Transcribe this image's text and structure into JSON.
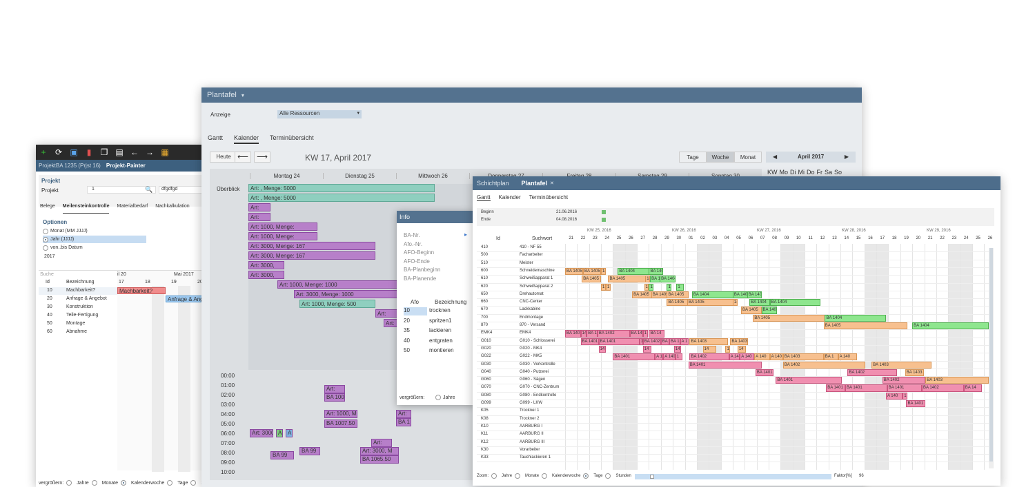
{
  "winA": {
    "toolbar_icons": [
      "plus-icon",
      "refresh-icon",
      "save-icon",
      "delete-icon",
      "copy-icon",
      "document-icon",
      "arrow-left-icon",
      "arrow-right-icon",
      "print-icon"
    ],
    "tab_inactive": "ProjektBA 1235 (Prjst 16)",
    "tab_active": "Projekt-Painter",
    "section_title": "Projekt",
    "projekt_label": "Projekt",
    "projekt_value": "1",
    "projekt_name": "dfgdfgd",
    "subtabs": [
      "Belege",
      "Meilensteinkontrolle",
      "Materialbedarf",
      "Nachkalkulation"
    ],
    "options_title": "Optionen",
    "options": [
      "Monat (MM JJJJ)",
      "Jahr (JJJJ)",
      "von..bis Datum"
    ],
    "year_value": "2017",
    "search_placeholder": "Suche",
    "col_id": "Id",
    "col_bez": "Bezeichnung",
    "month_a": "il 20",
    "month_b": "Mai 2017",
    "days": [
      "17",
      "18",
      "19",
      "20"
    ],
    "rows": [
      {
        "id": "10",
        "bez": "Machbarkeit?"
      },
      {
        "id": "20",
        "bez": "Anfrage & Angebot"
      },
      {
        "id": "30",
        "bez": "Konstruktion"
      },
      {
        "id": "40",
        "bez": "Teile-Fertigung"
      },
      {
        "id": "50",
        "bez": "Montage"
      },
      {
        "id": "60",
        "bez": "Abnahme"
      }
    ],
    "bar1": "Machbarkeit?",
    "bar2": "Anfrage & Ang",
    "zoom_label": "vergrößern:",
    "zoom_opts": [
      "Jahre",
      "Monate",
      "Kalenderwoche",
      "Tage",
      "S"
    ]
  },
  "winB": {
    "title": "Plantafel",
    "anzeige_label": "Anzeige",
    "anzeige_value": "Alle Ressourcen",
    "tabs": [
      "Gantt",
      "Kalender",
      "Terminübersicht"
    ],
    "heute": "Heute",
    "week_title": "KW 17, April 2017",
    "view_btns": [
      "Tage",
      "Woche",
      "Monat"
    ],
    "month_nav": "April 2017",
    "weekdays_short": [
      "KW",
      "Mo",
      "Di",
      "Mi",
      "Do",
      "Fr",
      "Sa",
      "So"
    ],
    "days": [
      "Montag 24",
      "Dienstag 25",
      "Mittwoch 26",
      "Donnerstag 27",
      "Freitag 28",
      "Samstag 29",
      "Sonntag 30"
    ],
    "overview_label": "Überblick",
    "bars": [
      "Art: , Menge: 5000",
      "Art: , Menge: 5000",
      "Art:",
      "Art:",
      "Art: 1000, Menge:",
      "Art: 1000, Menge:",
      "Art: 3000, Menge: 167",
      "Art: 3000, Menge: 167",
      "Art: 3000,",
      "Art: 3000,",
      "Art: 1000, Menge: 1000",
      "Art: 3000, Menge: 1000",
      "Art: 1000, Menge: 500",
      "Art:",
      "Art:"
    ],
    "hours": [
      "00:00",
      "01:00",
      "02:00",
      "03:00",
      "04:00",
      "05:00",
      "06:00",
      "07:00",
      "08:00",
      "09:00",
      "10:00"
    ],
    "cal_blocks": [
      "Art:",
      "BA 1001",
      "Art: 1000, Me",
      "BA 1007.50",
      "Art: 3000, M",
      "BA 1065.50",
      "Art:",
      "Art: 3000",
      "BA 99",
      "BA 99",
      "Art:",
      "BA 1",
      "A",
      "A"
    ]
  },
  "info": {
    "title": "Info",
    "fields": [
      "BA-Nr.",
      "Afo.-Nr.",
      "AFO-Beginn",
      "AFO-Ende",
      "BA-Planbeginn",
      "BA-Planende"
    ],
    "col_afo": "Afo",
    "col_bez": "Bezeichnung",
    "rows": [
      {
        "afo": "10",
        "bez": "trocknen"
      },
      {
        "afo": "20",
        "bez": "spritzen1"
      },
      {
        "afo": "35",
        "bez": "lackieren"
      },
      {
        "afo": "40",
        "bez": "entgraten"
      },
      {
        "afo": "50",
        "bez": "montieren"
      }
    ],
    "zoom_label": "vergrößern:",
    "zoom_opt": "Jahre"
  },
  "winC": {
    "tab1": "Schichtplan",
    "tab2": "Plantafel",
    "subtabs": [
      "Gantt",
      "Kalender",
      "Terminübersicht"
    ],
    "beginn_label": "Beginn",
    "beginn_value": "21.06.2016",
    "ende_label": "Ende",
    "ende_value": "04.08.2016",
    "col_id": "Id",
    "col_such": "Suchwort",
    "weeks": [
      "KW 25, 2016",
      "KW 26, 2016",
      "KW 27, 2016",
      "KW 28, 2016",
      "KW 29, 2016"
    ],
    "days": [
      "21",
      "22",
      "23",
      "24",
      "25",
      "26",
      "27",
      "28",
      "29",
      "30",
      "01",
      "02",
      "03",
      "04",
      "05",
      "06",
      "07",
      "08",
      "09",
      "10",
      "11",
      "12",
      "13",
      "14",
      "15",
      "16",
      "17",
      "18",
      "19",
      "20",
      "21",
      "22",
      "23",
      "24",
      "25",
      "26"
    ],
    "rows": [
      {
        "id": "410",
        "s": "410 - NF 55"
      },
      {
        "id": "500",
        "s": "Facharbeiter"
      },
      {
        "id": "510",
        "s": "Meister"
      },
      {
        "id": "600",
        "s": "Schneidemaschine"
      },
      {
        "id": "610",
        "s": "Schweißapparat 1"
      },
      {
        "id": "620",
        "s": "Schweißapparat 2"
      },
      {
        "id": "650",
        "s": "Drehautomat"
      },
      {
        "id": "660",
        "s": "CNC-Center"
      },
      {
        "id": "670",
        "s": "Lackkabine"
      },
      {
        "id": "700",
        "s": "Endmontage"
      },
      {
        "id": "870",
        "s": "870 - Versand"
      },
      {
        "id": "EMK4",
        "s": "EMK4"
      },
      {
        "id": "G010",
        "s": "G010 - Schlosserei"
      },
      {
        "id": "G020",
        "s": "G020 - MK4"
      },
      {
        "id": "G022",
        "s": "G022 - MK5"
      },
      {
        "id": "G030",
        "s": "G030 - Vorkontrolle"
      },
      {
        "id": "G040",
        "s": "G040 - Putzerei"
      },
      {
        "id": "G060",
        "s": "G060 - Sägen"
      },
      {
        "id": "G070",
        "s": "G070 - CNC-Zentrum"
      },
      {
        "id": "G080",
        "s": "G080 - Endkontrolle"
      },
      {
        "id": "G099",
        "s": "G099 - LKW"
      },
      {
        "id": "K05",
        "s": "Trockner 1"
      },
      {
        "id": "K08",
        "s": "Trockner 2"
      },
      {
        "id": "K10",
        "s": "AARBURG I"
      },
      {
        "id": "K11",
        "s": "AARBURG II"
      },
      {
        "id": "K12",
        "s": "AARBURG III"
      },
      {
        "id": "K30",
        "s": "Vorarbeiter"
      },
      {
        "id": "K33",
        "s": "Tauchlackieren 1"
      }
    ],
    "zoom_label": "Zoom:",
    "zoom_opts": [
      "Jahre",
      "Monate",
      "Kalenderwoche",
      "Tage",
      "Stunden"
    ],
    "faktor_label": "Faktor[%]",
    "faktor_value": "96",
    "bars": [
      {
        "r": 3,
        "d": 0,
        "w": 1.5,
        "c": "o",
        "t": "BA 1405"
      },
      {
        "r": 3,
        "d": 1.5,
        "w": 1.5,
        "c": "o",
        "t": "BA 1405"
      },
      {
        "r": 3,
        "d": 3,
        "w": 0.4,
        "c": "o",
        "t": "14"
      },
      {
        "r": 3,
        "d": 4.4,
        "w": 3.4,
        "c": "g",
        "t": "BA 1404"
      },
      {
        "r": 3,
        "d": 7,
        "w": 1.2,
        "c": "g",
        "t": "BA 1404"
      },
      {
        "r": 4,
        "d": 1.4,
        "w": 1.6,
        "c": "o",
        "t": "BA 1405"
      },
      {
        "r": 4,
        "d": 3.6,
        "w": 3.6,
        "c": "o",
        "t": "BA 1405"
      },
      {
        "r": 4,
        "d": 6.7,
        "w": 0.4,
        "c": "o",
        "t": "14"
      },
      {
        "r": 4,
        "d": 7.1,
        "w": 1.4,
        "c": "g",
        "t": "BA 1404"
      },
      {
        "r": 4,
        "d": 7.9,
        "w": 1.3,
        "c": "g",
        "t": "BA 1404"
      },
      {
        "r": 5,
        "d": 3,
        "w": 0.4,
        "c": "o",
        "t": "1"
      },
      {
        "r": 5,
        "d": 3.4,
        "w": 0.4,
        "c": "o",
        "t": "1"
      },
      {
        "r": 5,
        "d": 6.6,
        "w": 0.4,
        "c": "o",
        "t": "1"
      },
      {
        "r": 5,
        "d": 7,
        "w": 0.4,
        "c": "g",
        "t": "1"
      },
      {
        "r": 5,
        "d": 8.5,
        "w": 0.4,
        "c": "g",
        "t": "1"
      },
      {
        "r": 5,
        "d": 9.3,
        "w": 0.6,
        "c": "g",
        "t": "1"
      },
      {
        "r": 6,
        "d": 5.6,
        "w": 1.7,
        "c": "o",
        "t": "BA 1405"
      },
      {
        "r": 6,
        "d": 7.2,
        "w": 1.6,
        "c": "o",
        "t": "BA 1405"
      },
      {
        "r": 6,
        "d": 8.5,
        "w": 1.8,
        "c": "o",
        "t": "BA 1405"
      },
      {
        "r": 6,
        "d": 10.6,
        "w": 3.5,
        "c": "g",
        "t": "BA 1404"
      },
      {
        "r": 6,
        "d": 14,
        "w": 1.6,
        "c": "g",
        "t": "BA 1404"
      },
      {
        "r": 6,
        "d": 15.2,
        "w": 1.2,
        "c": "g",
        "t": "BA 140"
      },
      {
        "r": 7,
        "d": 8.5,
        "w": 2.6,
        "c": "o",
        "t": "BA 1405"
      },
      {
        "r": 7,
        "d": 10.2,
        "w": 3.9,
        "c": "o",
        "t": "BA 1405"
      },
      {
        "r": 7,
        "d": 14,
        "w": 0.4,
        "c": "o",
        "t": "14"
      },
      {
        "r": 7,
        "d": 15.4,
        "w": 1.7,
        "c": "g",
        "t": "BA 1404"
      },
      {
        "r": 7,
        "d": 17.1,
        "w": 4.2,
        "c": "g",
        "t": "BA 1404"
      },
      {
        "r": 8,
        "d": 14.7,
        "w": 1.7,
        "c": "o",
        "t": "BA 1405"
      },
      {
        "r": 8,
        "d": 16.4,
        "w": 1.3,
        "c": "g",
        "t": "BA 1404"
      },
      {
        "r": 9,
        "d": 15.7,
        "w": 6.1,
        "c": "o",
        "t": "BA 1405"
      },
      {
        "r": 9,
        "d": 21.7,
        "w": 5.1,
        "c": "g",
        "t": "BA 1404"
      },
      {
        "r": 10,
        "d": 21.6,
        "w": 7,
        "c": "o",
        "t": "BA 1405"
      },
      {
        "r": 10,
        "d": 29,
        "w": 7,
        "c": "g",
        "t": "BA 1404"
      },
      {
        "r": 11,
        "d": 0,
        "w": 1.3,
        "c": "r",
        "t": "BA 140"
      },
      {
        "r": 11,
        "d": 1.3,
        "w": 0.5,
        "c": "r",
        "t": "14"
      },
      {
        "r": 11,
        "d": 1.8,
        "w": 0.9,
        "c": "r",
        "t": "BA 140"
      },
      {
        "r": 11,
        "d": 2.7,
        "w": 2.7,
        "c": "r",
        "t": "BA 1402"
      },
      {
        "r": 11,
        "d": 5.4,
        "w": 1.1,
        "c": "r",
        "t": "BA 140"
      },
      {
        "r": 11,
        "d": 6.5,
        "w": 0.4,
        "c": "r",
        "t": "1"
      },
      {
        "r": 11,
        "d": 7,
        "w": 1.3,
        "c": "r",
        "t": "BA 14"
      },
      {
        "r": 12,
        "d": 1.3,
        "w": 1.5,
        "c": "r",
        "t": "BA 1401"
      },
      {
        "r": 12,
        "d": 2.8,
        "w": 3.4,
        "c": "r",
        "t": "BA 1401"
      },
      {
        "r": 12,
        "d": 6.2,
        "w": 0.3,
        "c": "r",
        "t": "1"
      },
      {
        "r": 12,
        "d": 6.5,
        "w": 1.5,
        "c": "r",
        "t": "BA 1402"
      },
      {
        "r": 12,
        "d": 8,
        "w": 0.7,
        "c": "r",
        "t": "BA 1"
      },
      {
        "r": 12,
        "d": 8.7,
        "w": 0.9,
        "c": "r",
        "t": "BA 1"
      },
      {
        "r": 12,
        "d": 9.6,
        "w": 0.7,
        "c": "r",
        "t": "A 1"
      },
      {
        "r": 12,
        "d": 10.4,
        "w": 3.2,
        "c": "o",
        "t": "BA 1403"
      },
      {
        "r": 12,
        "d": 13.8,
        "w": 1.5,
        "c": "o",
        "t": "BA 1403"
      },
      {
        "r": 13,
        "d": 2.8,
        "w": 0.6,
        "c": "r",
        "t": "14"
      },
      {
        "r": 13,
        "d": 6.5,
        "w": 0.7,
        "c": "r",
        "t": "14"
      },
      {
        "r": 13,
        "d": 9.1,
        "w": 0.6,
        "c": "r",
        "t": "14"
      },
      {
        "r": 13,
        "d": 11.5,
        "w": 1.1,
        "c": "o",
        "t": "14"
      },
      {
        "r": 13,
        "d": 13.4,
        "w": 0.4,
        "c": "o",
        "t": "1"
      },
      {
        "r": 13,
        "d": 14.4,
        "w": 0.7,
        "c": "o",
        "t": "14"
      },
      {
        "r": 14,
        "d": 4,
        "w": 3.5,
        "c": "r",
        "t": "BA 1401"
      },
      {
        "r": 14,
        "d": 7.5,
        "w": 0.7,
        "c": "r",
        "t": "A 140"
      },
      {
        "r": 14,
        "d": 8.2,
        "w": 1,
        "c": "r",
        "t": "A 140"
      },
      {
        "r": 14,
        "d": 9.2,
        "w": 0.6,
        "c": "r",
        "t": "1"
      },
      {
        "r": 14,
        "d": 10.4,
        "w": 3.3,
        "c": "r",
        "t": "BA 1402"
      },
      {
        "r": 14,
        "d": 13.7,
        "w": 0.9,
        "c": "r",
        "t": "A 140"
      },
      {
        "r": 14,
        "d": 14.6,
        "w": 1.2,
        "c": "r",
        "t": "A 140"
      },
      {
        "r": 14,
        "d": 15.8,
        "w": 1.3,
        "c": "o",
        "t": "A 140"
      },
      {
        "r": 14,
        "d": 17.1,
        "w": 1.1,
        "c": "o",
        "t": "A 140"
      },
      {
        "r": 14,
        "d": 18.2,
        "w": 3.4,
        "c": "o",
        "t": "BA 1403"
      },
      {
        "r": 14,
        "d": 21.6,
        "w": 1.2,
        "c": "o",
        "t": "BA 1"
      },
      {
        "r": 14,
        "d": 22.8,
        "w": 1.6,
        "c": "o",
        "t": "A 140"
      },
      {
        "r": 15,
        "d": 10.3,
        "w": 6.1,
        "c": "r",
        "t": "BA 1401"
      },
      {
        "r": 15,
        "d": 18.2,
        "w": 6.9,
        "c": "o",
        "t": "BA 1402"
      },
      {
        "r": 15,
        "d": 25.6,
        "w": 5,
        "c": "o",
        "t": "BA 1403"
      },
      {
        "r": 16,
        "d": 15.9,
        "w": 1.5,
        "c": "r",
        "t": "BA 1401"
      },
      {
        "r": 16,
        "d": 23.6,
        "w": 4.1,
        "c": "r",
        "t": "BA 1402"
      },
      {
        "r": 16,
        "d": 28.4,
        "w": 1.6,
        "c": "o",
        "t": "BA 1403"
      },
      {
        "r": 17,
        "d": 17.6,
        "w": 5.5,
        "c": "r",
        "t": "BA 1401"
      },
      {
        "r": 17,
        "d": 26.5,
        "w": 3.6,
        "c": "r",
        "t": "BA 1402"
      },
      {
        "r": 17,
        "d": 30.1,
        "w": 5.9,
        "c": "o",
        "t": "BA 1403"
      },
      {
        "r": 18,
        "d": 21.8,
        "w": 1.6,
        "c": "r",
        "t": "BA 1401"
      },
      {
        "r": 18,
        "d": 23.4,
        "w": 3.5,
        "c": "r",
        "t": "BA 1401"
      },
      {
        "r": 18,
        "d": 26.9,
        "w": 2.9,
        "c": "r",
        "t": "BA 1401"
      },
      {
        "r": 18,
        "d": 29.8,
        "w": 3.5,
        "c": "r",
        "t": "BA 1402"
      },
      {
        "r": 18,
        "d": 33.3,
        "w": 1.5,
        "c": "r",
        "t": "BA 14"
      },
      {
        "r": 19,
        "d": 26.8,
        "w": 1.4,
        "c": "r",
        "t": "A 140"
      },
      {
        "r": 19,
        "d": 28.2,
        "w": 0.4,
        "c": "r",
        "t": "1"
      },
      {
        "r": 20,
        "d": 28.5,
        "w": 1.6,
        "c": "r",
        "t": "BA 1401"
      }
    ]
  }
}
